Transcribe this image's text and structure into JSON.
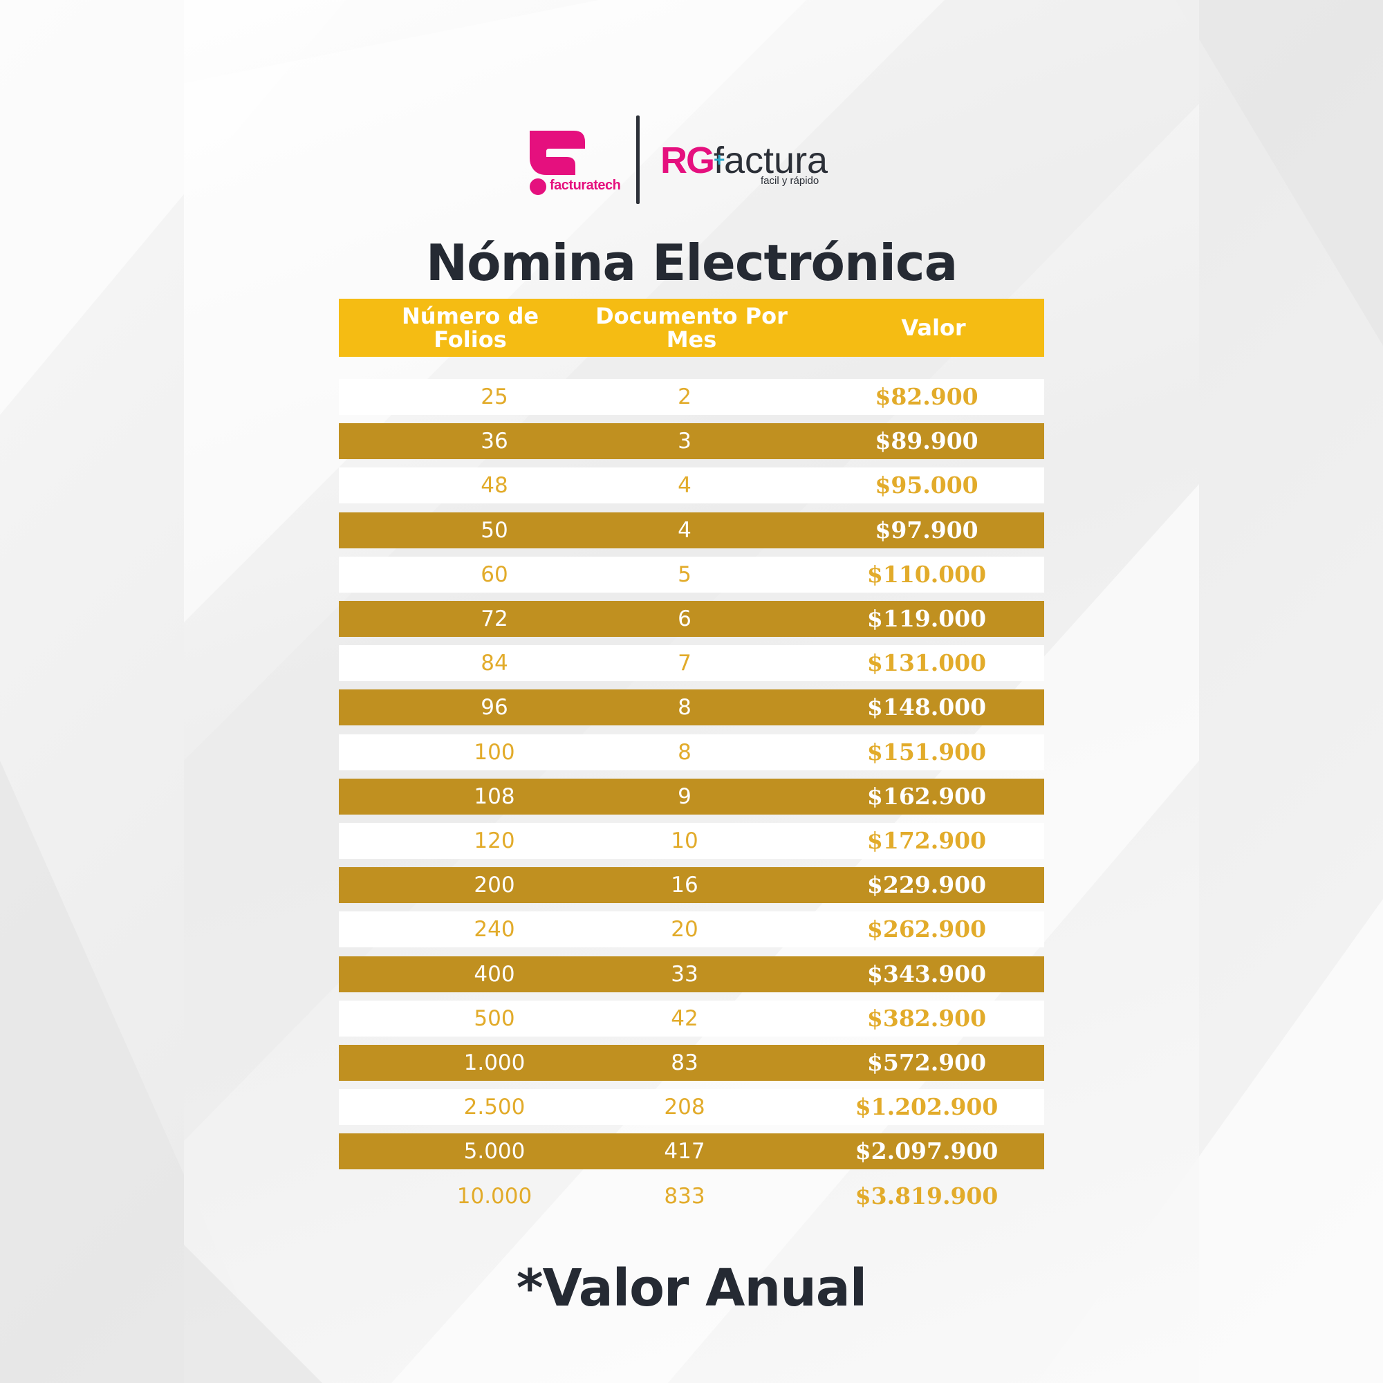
{
  "brand": {
    "facturatech": "facturatech",
    "rg_part": "RG",
    "factura_part": "factura",
    "tagline": "facil y rápido"
  },
  "title": "Nómina Electrónica",
  "table": {
    "headers": {
      "folios": "Número de Folios",
      "documento": "Documento Por Mes",
      "valor": "Valor"
    },
    "rows": [
      {
        "folios": "25",
        "documento": "2",
        "valor": "$82.900"
      },
      {
        "folios": "36",
        "documento": "3",
        "valor": "$89.900"
      },
      {
        "folios": "48",
        "documento": "4",
        "valor": "$95.000"
      },
      {
        "folios": "50",
        "documento": "4",
        "valor": "$97.900"
      },
      {
        "folios": "60",
        "documento": "5",
        "valor": "$110.000"
      },
      {
        "folios": "72",
        "documento": "6",
        "valor": "$119.000"
      },
      {
        "folios": "84",
        "documento": "7",
        "valor": "$131.000"
      },
      {
        "folios": "96",
        "documento": "8",
        "valor": "$148.000"
      },
      {
        "folios": "100",
        "documento": "8",
        "valor": "$151.900"
      },
      {
        "folios": "108",
        "documento": "9",
        "valor": "$162.900"
      },
      {
        "folios": "120",
        "documento": "10",
        "valor": "$172.900"
      },
      {
        "folios": "200",
        "documento": "16",
        "valor": "$229.900"
      },
      {
        "folios": "240",
        "documento": "20",
        "valor": "$262.900"
      },
      {
        "folios": "400",
        "documento": "33",
        "valor": "$343.900"
      },
      {
        "folios": "500",
        "documento": "42",
        "valor": "$382.900"
      },
      {
        "folios": "1.000",
        "documento": "83",
        "valor": "$572.900"
      },
      {
        "folios": "2.500",
        "documento": "208",
        "valor": "$1.202.900"
      },
      {
        "folios": "5.000",
        "documento": "417",
        "valor": "$2.097.900"
      },
      {
        "folios": "10.000",
        "documento": "833",
        "valor": "$3.819.900"
      }
    ]
  },
  "footer": "*Valor Anual",
  "colors": {
    "pink": "#e5107e",
    "header_yellow": "#f5bc13",
    "row_gold": "#c09020",
    "text_gold": "#e2ab2a",
    "dark_text": "#252a33"
  }
}
